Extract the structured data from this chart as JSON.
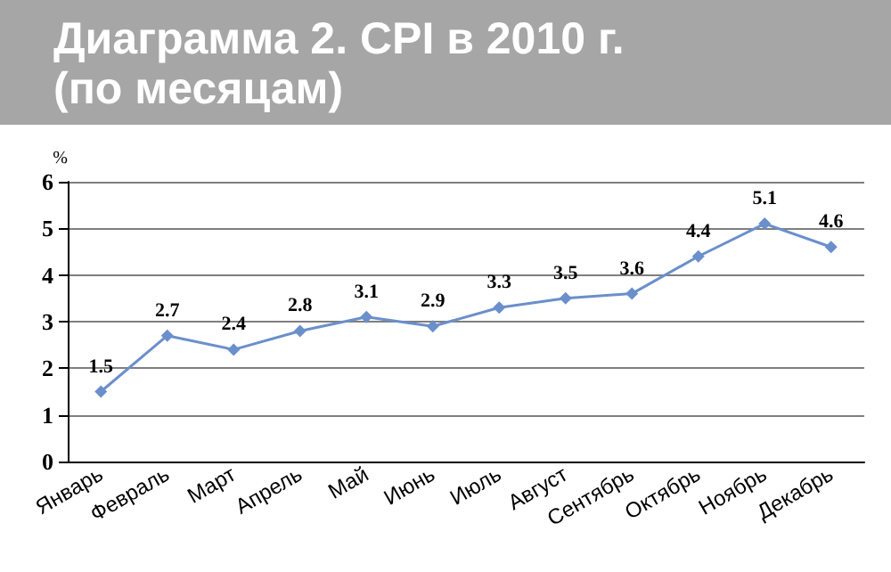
{
  "chart_data": {
    "type": "line",
    "title": "Диаграмма 2. CPI в 2010 г. (по месяцам)",
    "ylabel": "%",
    "categories": [
      "Январь",
      "Февраль",
      "Март",
      "Апрель",
      "Май",
      "Июнь",
      "Июль",
      "Август",
      "Сентябрь",
      "Октябрь",
      "Ноябрь",
      "Декабрь"
    ],
    "series": [
      {
        "color": "#6b8fcb",
        "values": [
          1.5,
          2.7,
          2.4,
          2.8,
          3.1,
          2.9,
          3.3,
          3.5,
          3.6,
          4.4,
          5.1,
          4.6
        ]
      }
    ],
    "ylim": [
      0,
      6
    ],
    "yticks": [
      0,
      1,
      2,
      3,
      4,
      5,
      6
    ],
    "grid": "y",
    "marker": "diamond",
    "line_style": "solid",
    "data_labels": true
  }
}
